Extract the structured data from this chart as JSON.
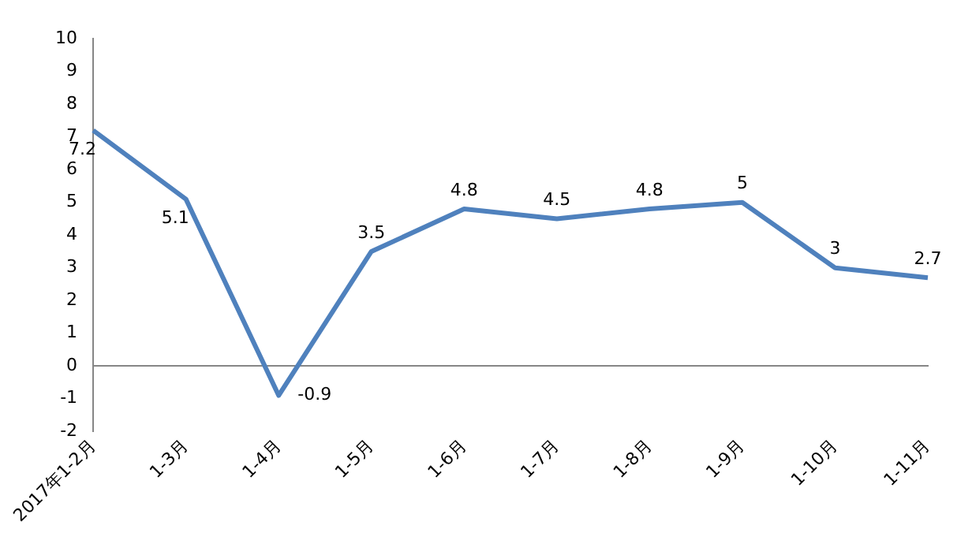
{
  "chart_data": {
    "type": "line",
    "categories": [
      "2017年1-2月",
      "1-3月",
      "1-4月",
      "1-5月",
      "1-6月",
      "1-7月",
      "1-8月",
      "1-9月",
      "1-10月",
      "1-11月"
    ],
    "series": [
      {
        "color": "#4f81bd",
        "values": [
          7.2,
          5.1,
          -0.9,
          3.5,
          4.8,
          4.5,
          4.8,
          5,
          3,
          2.7
        ]
      }
    ],
    "ylim": [
      -2,
      10
    ],
    "yticks": [
      -2,
      -1,
      0,
      1,
      2,
      3,
      4,
      5,
      6,
      7,
      8,
      9,
      10
    ],
    "data_labels": true,
    "legend": false,
    "marker": "none",
    "line_style": "solid"
  }
}
